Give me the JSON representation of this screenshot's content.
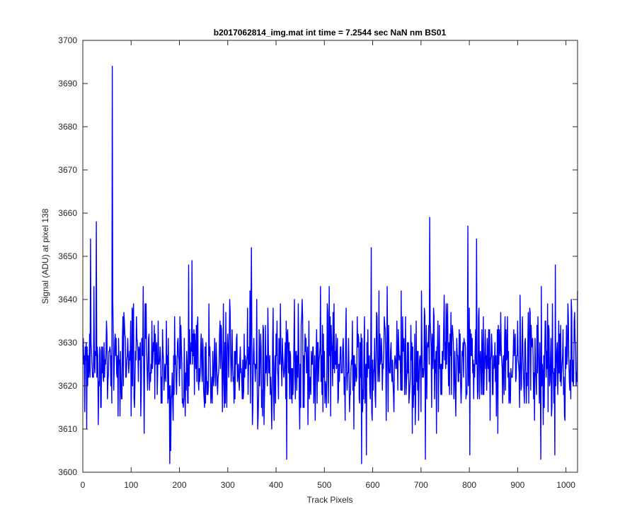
{
  "chart_data": {
    "type": "line",
    "title": "b2017062814_img.mat int time = 7.2544 sec  NaN nm BS01",
    "xlabel": "Track Pixels",
    "ylabel": "Signal (ADU) at pixel 138",
    "xlim": [
      0,
      1024
    ],
    "ylim": [
      3600,
      3700
    ],
    "xticks": [
      0,
      100,
      200,
      300,
      400,
      500,
      600,
      700,
      800,
      900,
      1000
    ],
    "yticks": [
      3600,
      3610,
      3620,
      3630,
      3640,
      3650,
      3660,
      3670,
      3680,
      3690,
      3700
    ],
    "grid": false,
    "legend": "none",
    "series": [
      {
        "name": "",
        "color": "#0000ff",
        "noise_baseline": 3625,
        "noise_std": 7,
        "random_seed": 2017062814,
        "peaks": [
          {
            "x": 61,
            "y": 3694
          },
          {
            "x": 28,
            "y": 3658
          },
          {
            "x": 16,
            "y": 3654
          },
          {
            "x": 180,
            "y": 3602
          },
          {
            "x": 182,
            "y": 3605
          },
          {
            "x": 349,
            "y": 3652
          },
          {
            "x": 597,
            "y": 3652
          },
          {
            "x": 577,
            "y": 3602
          },
          {
            "x": 718,
            "y": 3659
          },
          {
            "x": 709,
            "y": 3603
          },
          {
            "x": 797,
            "y": 3657
          },
          {
            "x": 815,
            "y": 3654
          },
          {
            "x": 801,
            "y": 3604
          },
          {
            "x": 422,
            "y": 3603
          },
          {
            "x": 978,
            "y": 3648
          },
          {
            "x": 948,
            "y": 3603
          }
        ]
      }
    ]
  }
}
